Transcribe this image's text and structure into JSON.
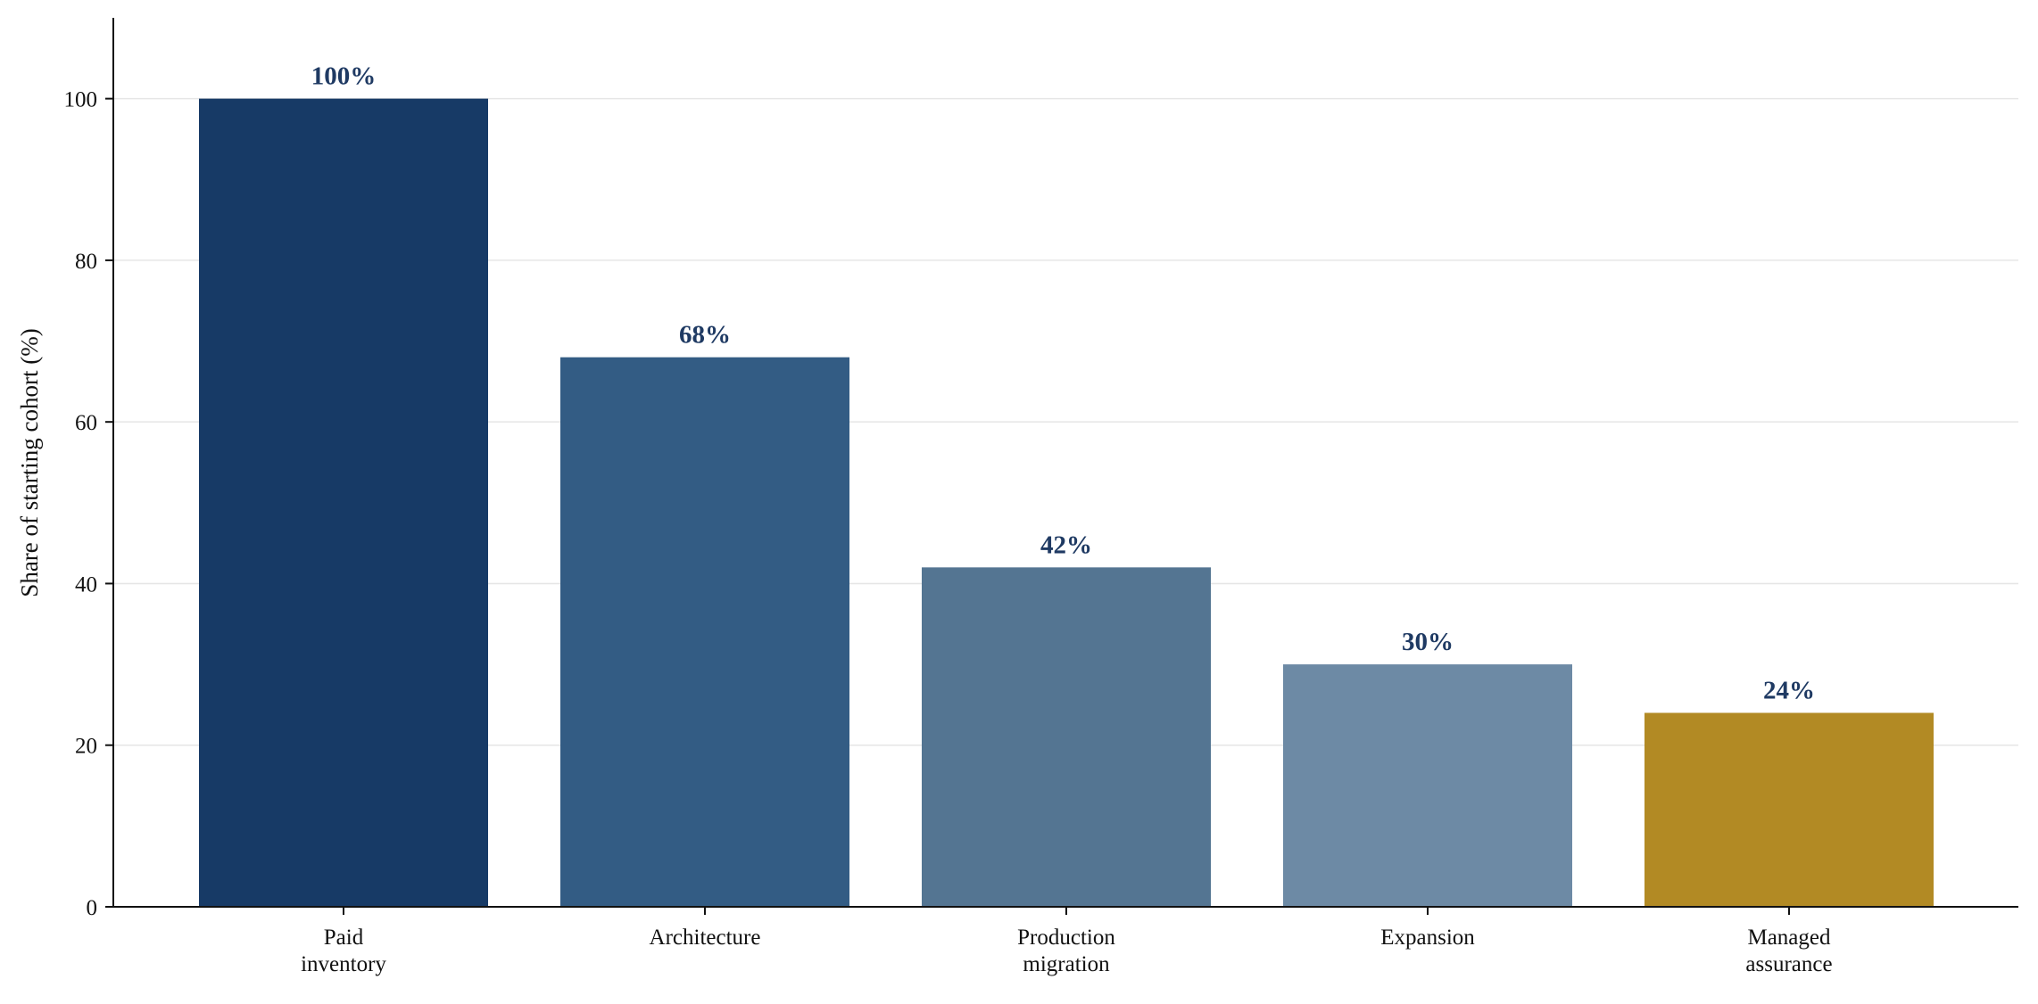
{
  "chart_data": {
    "type": "bar",
    "title": "",
    "xlabel": "",
    "ylabel": "Share of starting cohort (%)",
    "categories": [
      [
        "Paid",
        "inventory"
      ],
      [
        "Architecture"
      ],
      [
        "Production",
        "migration"
      ],
      [
        "Expansion"
      ],
      [
        "Managed",
        "assurance"
      ]
    ],
    "values": [
      100,
      68,
      42,
      30,
      24
    ],
    "value_labels": [
      "100%",
      "68%",
      "42%",
      "30%",
      "24%"
    ],
    "bar_colors": [
      "#173a66",
      "#335c84",
      "#547592",
      "#6d8aa5",
      "#b28a24"
    ],
    "value_label_color": "#1f3a63",
    "ylim": [
      0,
      110
    ],
    "yticks": [
      0,
      20,
      40,
      60,
      80,
      100
    ],
    "grid": "horizontal",
    "legend": "none"
  }
}
